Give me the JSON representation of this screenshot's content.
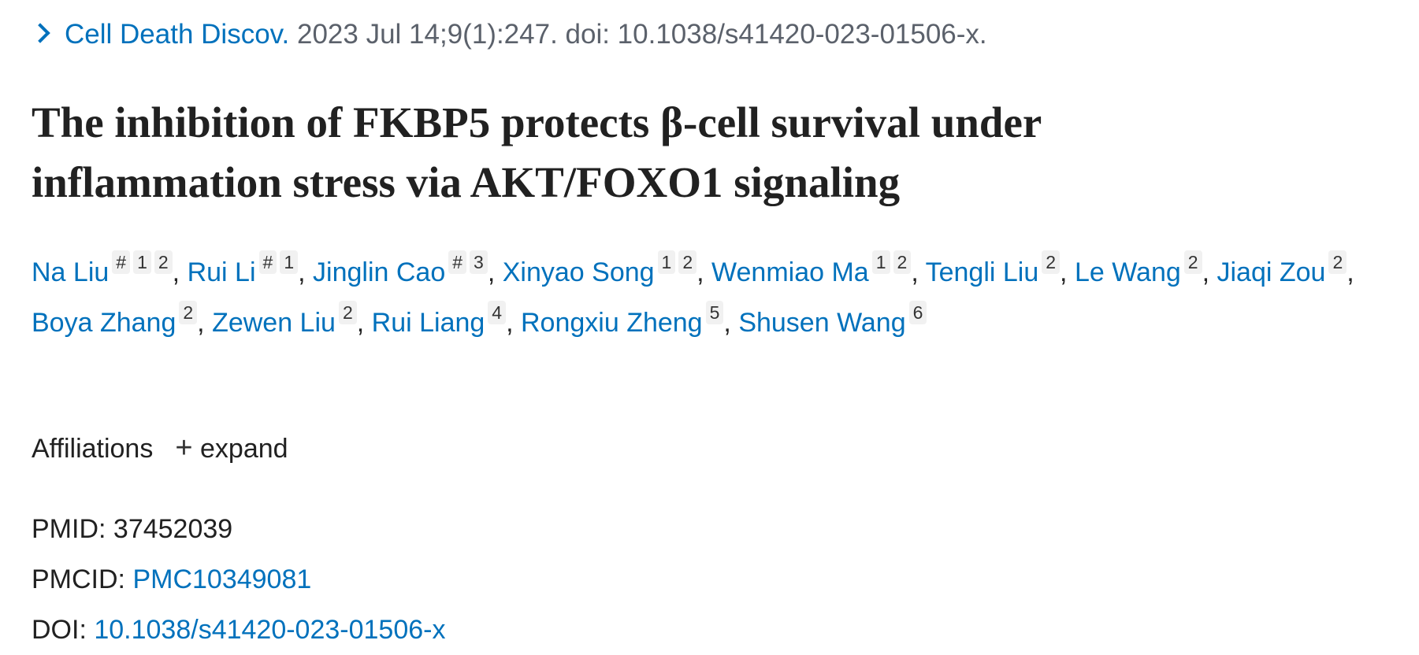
{
  "citation": {
    "journal": "Cell Death Discov.",
    "details": " 2023 Jul 14;9(1):247. doi: 10.1038/s41420-023-01506-x."
  },
  "title": "The inhibition of FKBP5 protects β-cell survival under inflammation stress via AKT/FOXO1 signaling",
  "authors": [
    {
      "name": "Na Liu",
      "sups": [
        "#",
        "1",
        "2"
      ]
    },
    {
      "name": "Rui Li",
      "sups": [
        "#",
        "1"
      ]
    },
    {
      "name": "Jinglin Cao",
      "sups": [
        "#",
        "3"
      ]
    },
    {
      "name": "Xinyao Song",
      "sups": [
        "1",
        "2"
      ]
    },
    {
      "name": "Wenmiao Ma",
      "sups": [
        "1",
        "2"
      ]
    },
    {
      "name": "Tengli Liu",
      "sups": [
        "2"
      ]
    },
    {
      "name": "Le Wang",
      "sups": [
        "2"
      ]
    },
    {
      "name": "Jiaqi Zou",
      "sups": [
        "2"
      ]
    },
    {
      "name": "Boya Zhang",
      "sups": [
        "2"
      ]
    },
    {
      "name": "Zewen Liu",
      "sups": [
        "2"
      ]
    },
    {
      "name": "Rui Liang",
      "sups": [
        "4"
      ]
    },
    {
      "name": "Rongxiu Zheng",
      "sups": [
        "5"
      ]
    },
    {
      "name": "Shusen Wang",
      "sups": [
        "6"
      ]
    }
  ],
  "affiliations": {
    "label": "Affiliations",
    "expand_icon": "+",
    "expand_label": "expand"
  },
  "ids": {
    "pmid_label": "PMID: ",
    "pmid": "37452039",
    "pmcid_label": "PMCID: ",
    "pmcid": "PMC10349081",
    "doi_label": "DOI: ",
    "doi": "10.1038/s41420-023-01506-x"
  },
  "colors": {
    "link": "#0071bc",
    "text": "#212121",
    "muted": "#5b616b",
    "badge_bg": "#f1f1f1"
  }
}
